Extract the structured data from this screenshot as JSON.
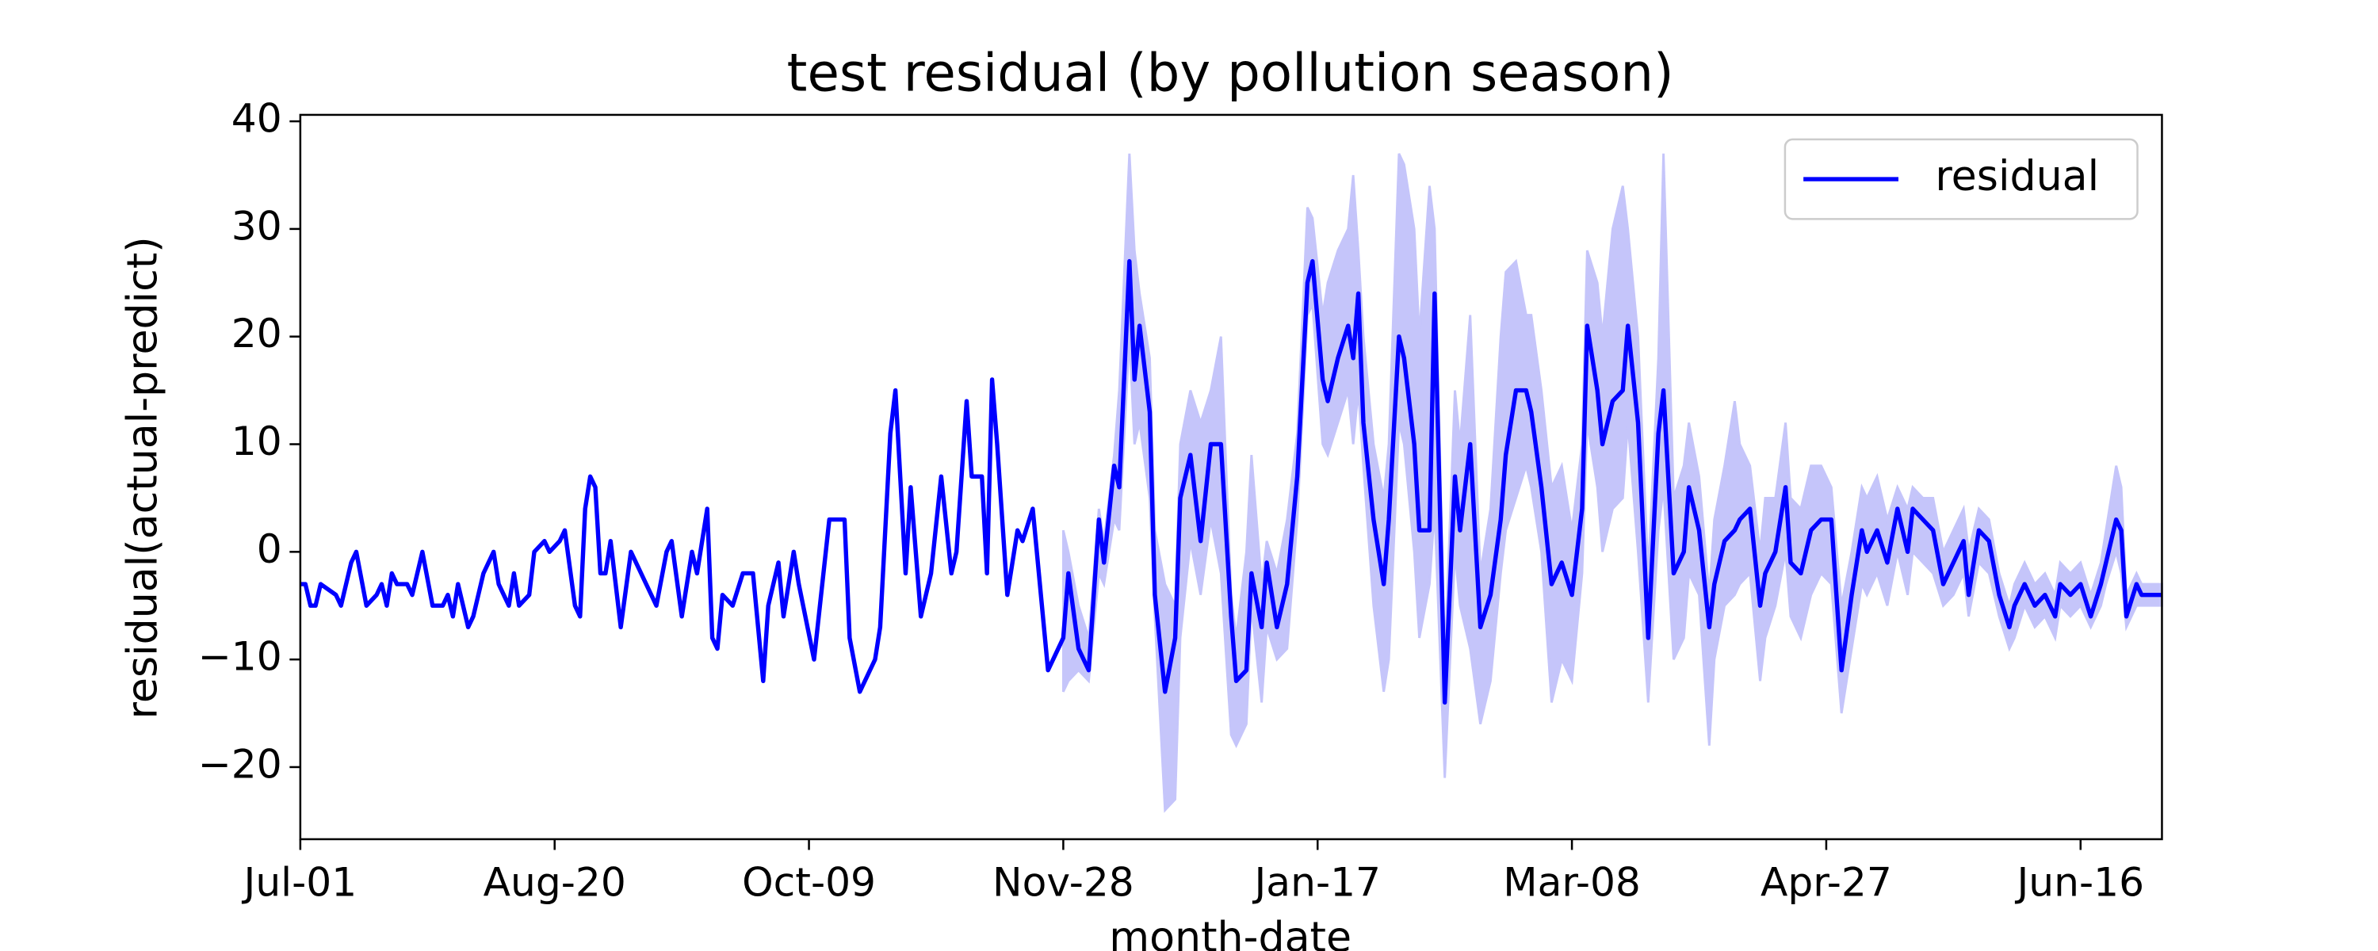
{
  "chart_data": {
    "type": "line",
    "title": "test residual (by pollution season)",
    "xlabel": "month-date",
    "ylabel": "residual(actual-predict)",
    "xlim": [
      0,
      366
    ],
    "ylim": [
      -26.7,
      40.6
    ],
    "xticks": [
      {
        "value": 0,
        "label": "Jul-01"
      },
      {
        "value": 50,
        "label": "Aug-20"
      },
      {
        "value": 100,
        "label": "Oct-09"
      },
      {
        "value": 150,
        "label": "Nov-28"
      },
      {
        "value": 200,
        "label": "Jan-17"
      },
      {
        "value": 250,
        "label": "Mar-08"
      },
      {
        "value": 300,
        "label": "Apr-27"
      },
      {
        "value": 350,
        "label": "Jun-16"
      }
    ],
    "yticks": [
      {
        "value": -20,
        "label": "−20"
      },
      {
        "value": -10,
        "label": "−10"
      },
      0,
      10,
      20,
      30,
      40
    ],
    "grid": false,
    "legend": "upper right",
    "x": [
      0,
      1,
      2,
      3,
      4,
      7,
      8,
      10,
      11,
      13,
      15,
      16,
      17,
      18,
      19,
      21,
      22,
      24,
      26,
      28,
      29,
      30,
      31,
      33,
      34,
      36,
      38,
      39,
      41,
      42,
      43,
      45,
      46,
      48,
      49,
      51,
      52,
      54,
      55,
      56,
      57,
      58,
      59,
      60,
      61,
      63,
      65,
      67,
      69,
      70,
      72,
      73,
      75,
      77,
      78,
      80,
      81,
      82,
      83,
      85,
      87,
      89,
      91,
      92,
      94,
      95,
      97,
      98,
      101,
      104,
      107,
      108,
      110,
      113,
      114,
      116,
      117,
      119,
      120,
      122,
      124,
      126,
      128,
      129,
      131,
      132,
      134,
      135,
      136,
      137,
      139,
      141,
      142,
      144,
      146,
      147,
      149,
      150,
      151,
      153,
      155,
      157,
      158,
      160,
      161,
      163,
      164,
      165,
      167,
      168,
      170,
      172,
      173,
      175,
      177,
      179,
      181,
      183,
      184,
      186,
      187,
      189,
      190,
      192,
      194,
      196,
      198,
      199,
      201,
      202,
      204,
      206,
      207,
      208,
      209,
      211,
      213,
      214,
      216,
      217,
      219,
      220,
      222,
      223,
      225,
      227,
      228,
      230,
      232,
      234,
      236,
      237,
      239,
      241,
      242,
      244,
      246,
      248,
      250,
      252,
      253,
      255,
      256,
      258,
      260,
      261,
      263,
      265,
      267,
      268,
      270,
      272,
      273,
      275,
      277,
      278,
      280,
      282,
      283,
      285,
      287,
      288,
      290,
      292,
      293,
      295,
      297,
      299,
      301,
      303,
      305,
      307,
      308,
      310,
      312,
      314,
      316,
      317,
      319,
      321,
      323,
      325,
      327,
      328,
      330,
      332,
      334,
      336,
      337,
      339,
      341,
      343,
      345,
      346,
      348,
      350,
      352,
      354,
      355,
      357,
      358,
      359,
      361,
      362,
      364,
      366
    ],
    "series": [
      {
        "name": "residual",
        "color": "#0000ff",
        "values": [
          -3,
          -3,
          -5,
          -5,
          -3,
          -4,
          -5,
          -1,
          0,
          -5,
          -4,
          -3,
          -5,
          -2,
          -3,
          -3,
          -4,
          0,
          -5,
          -5,
          -4,
          -6,
          -3,
          -7,
          -6,
          -2,
          0,
          -3,
          -5,
          -2,
          -5,
          -4,
          0,
          1,
          0,
          1,
          2,
          -5,
          -6,
          4,
          7,
          6,
          -2,
          -2,
          1,
          -7,
          0,
          -2,
          -4,
          -5,
          0,
          1,
          -6,
          0,
          -2,
          4,
          -8,
          -9,
          -4,
          -5,
          -2,
          -2,
          -12,
          -5,
          -1,
          -6,
          0,
          -3,
          -10,
          3,
          3,
          -8,
          -13,
          -10,
          -7,
          11,
          15,
          -2,
          6,
          -6,
          -2,
          7,
          -2,
          0,
          14,
          7,
          7,
          -2,
          16,
          10,
          -4,
          2,
          1,
          4,
          -6,
          -11,
          -9,
          -8,
          -2,
          -9,
          -11,
          3,
          -1,
          8,
          6,
          27,
          16,
          21,
          13,
          -4,
          -13,
          -8,
          5,
          9,
          1,
          10,
          10,
          -6,
          -12,
          -11,
          -2,
          -7,
          -1,
          -7,
          -3,
          7,
          25,
          27,
          16,
          14,
          18,
          21,
          18,
          24,
          12,
          3,
          -3,
          3,
          20,
          18,
          10,
          2,
          2,
          24,
          -14,
          7,
          2,
          10,
          -7,
          -4,
          3,
          9,
          15,
          15,
          13,
          6,
          -3,
          -1,
          -4,
          4,
          21,
          15,
          10,
          14,
          15,
          21,
          12,
          -8,
          11,
          15,
          -2,
          0,
          6,
          2,
          -7,
          -3,
          1,
          2,
          3,
          4,
          -5,
          -2,
          0,
          6,
          -1,
          -2,
          2,
          3,
          3,
          -11,
          -4,
          2,
          0,
          2,
          -1,
          4,
          0,
          4,
          3,
          2,
          -3,
          -1,
          1,
          -4,
          2,
          1,
          -4,
          -7,
          -5,
          -3,
          -5,
          -4,
          -6,
          -3,
          -4,
          -3,
          -6,
          -3,
          -1,
          3,
          2,
          -6,
          -3,
          -4,
          -4,
          -4
        ]
      }
    ],
    "band": {
      "color": "#c5c5fa",
      "x": [
        150,
        151,
        153,
        155,
        157,
        158,
        160,
        161,
        163,
        164,
        165,
        167,
        168,
        170,
        172,
        173,
        175,
        177,
        179,
        181,
        183,
        184,
        186,
        187,
        189,
        190,
        192,
        194,
        196,
        198,
        199,
        201,
        202,
        204,
        206,
        207,
        208,
        209,
        211,
        213,
        214,
        216,
        217,
        219,
        220,
        222,
        223,
        225,
        227,
        228,
        230,
        232,
        234,
        236,
        237,
        239,
        241,
        242,
        244,
        246,
        248,
        250,
        252,
        253,
        255,
        256,
        258,
        260,
        261,
        263,
        265,
        267,
        268,
        270,
        272,
        273,
        275,
        277,
        278,
        280,
        282,
        283,
        285,
        287,
        288,
        290,
        292,
        293,
        295,
        297,
        299,
        301,
        303,
        305,
        307,
        308,
        310,
        312,
        314,
        316,
        317,
        319,
        321,
        323,
        325,
        327,
        328,
        330,
        332,
        334,
        336,
        337,
        339,
        341,
        343,
        345,
        346,
        348,
        350,
        352,
        354,
        355,
        357,
        358,
        359,
        361,
        362,
        364,
        366
      ],
      "lower": [
        -13,
        -12,
        -11,
        -12,
        -2,
        -3,
        3,
        2,
        20,
        10,
        12,
        5,
        -6,
        -24,
        -23,
        -8,
        1,
        -4,
        3,
        -2,
        -17,
        -18,
        -16,
        -5,
        -14,
        -7,
        -10,
        -9,
        3,
        22,
        23,
        10,
        9,
        12,
        15,
        10,
        15,
        8,
        -5,
        -13,
        -10,
        12,
        10,
        0,
        -8,
        -3,
        4,
        -21,
        0,
        -5,
        -9,
        -16,
        -12,
        -2,
        2,
        5,
        8,
        6,
        0,
        -14,
        -10,
        -12,
        -2,
        12,
        6,
        0,
        4,
        5,
        12,
        0,
        -14,
        2,
        6,
        -10,
        -8,
        -2,
        -4,
        -18,
        -10,
        -5,
        -4,
        -3,
        -2,
        -12,
        -8,
        -5,
        0,
        -6,
        -8,
        -4,
        -2,
        -3,
        -15,
        -9,
        -3,
        -4,
        -2,
        -5,
        0,
        -4,
        0,
        -1,
        -2,
        -5,
        -4,
        -2,
        -6,
        -1,
        -2,
        -6,
        -9,
        -8,
        -5,
        -7,
        -6,
        -8,
        -5,
        -6,
        -5,
        -7,
        -5,
        -3,
        0,
        -2,
        -7,
        -5,
        -5,
        -5,
        -5
      ],
      "upper": [
        2,
        0,
        -5,
        -8,
        4,
        1,
        9,
        15,
        37,
        28,
        24,
        18,
        2,
        -3,
        -5,
        10,
        15,
        12,
        15,
        20,
        -4,
        -8,
        0,
        9,
        -3,
        1,
        -2,
        3,
        11,
        32,
        31,
        22,
        25,
        28,
        30,
        35,
        28,
        20,
        10,
        5,
        10,
        37,
        36,
        30,
        20,
        34,
        30,
        -10,
        15,
        10,
        22,
        -2,
        4,
        20,
        26,
        27,
        22,
        22,
        15,
        6,
        8,
        2,
        10,
        28,
        25,
        20,
        30,
        34,
        30,
        20,
        -2,
        18,
        37,
        5,
        8,
        12,
        7,
        -4,
        3,
        8,
        14,
        10,
        8,
        0,
        5,
        5,
        12,
        5,
        4,
        8,
        8,
        6,
        -5,
        0,
        6,
        5,
        7,
        3,
        6,
        4,
        6,
        5,
        5,
        0,
        2,
        4,
        0,
        4,
        3,
        -2,
        -5,
        -3,
        -1,
        -3,
        -2,
        -4,
        -1,
        -2,
        -1,
        -4,
        -1,
        2,
        8,
        6,
        -4,
        -2,
        -3,
        -3,
        -3
      ]
    }
  }
}
